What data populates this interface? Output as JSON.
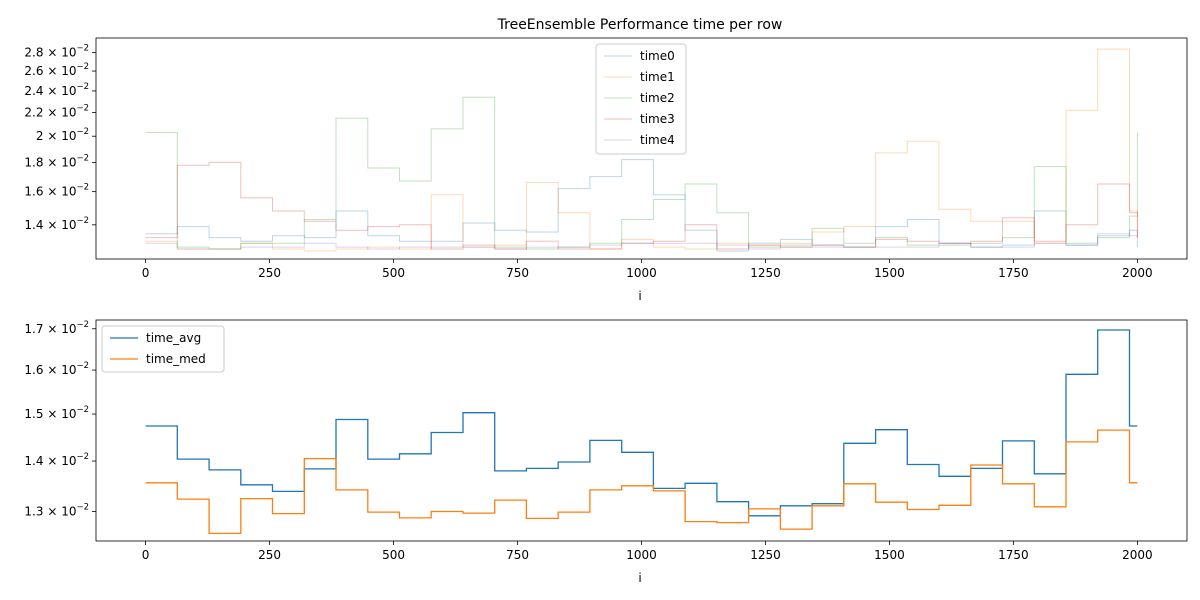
{
  "chart_data": [
    {
      "type": "line",
      "title": "TreeEnsemble Performance time per row",
      "xlabel": "i",
      "ylabel": "",
      "yscale": "log",
      "xlim": [
        -100,
        2100
      ],
      "ylim": [
        0.0122,
        0.0297
      ],
      "xticks": [
        0,
        250,
        500,
        750,
        1000,
        1250,
        1500,
        1750,
        2000
      ],
      "xtick_labels": [
        "0",
        "250",
        "500",
        "750",
        "1000",
        "1250",
        "1500",
        "1750",
        "2000"
      ],
      "yticks": [
        {
          "value": 0.014,
          "mantissa": "1.4",
          "exp": "−2"
        },
        {
          "value": 0.016,
          "mantissa": "1.6",
          "exp": "−2"
        },
        {
          "value": 0.018,
          "mantissa": "1.8",
          "exp": "−2"
        },
        {
          "value": 0.02,
          "mantissa": "2",
          "exp": "−2"
        },
        {
          "value": 0.022,
          "mantissa": "2.2",
          "exp": "−2"
        },
        {
          "value": 0.024,
          "mantissa": "2.4",
          "exp": "−2"
        },
        {
          "value": 0.026,
          "mantissa": "2.6",
          "exp": "−2"
        },
        {
          "value": 0.028,
          "mantissa": "2.8",
          "exp": "−2"
        }
      ],
      "grid": false,
      "legend_position": "top-center",
      "line_alpha": 0.3,
      "x": [
        0,
        64,
        128,
        192,
        256,
        320,
        384,
        448,
        512,
        576,
        640,
        704,
        768,
        832,
        896,
        960,
        1024,
        1088,
        1152,
        1216,
        1280,
        1344,
        1408,
        1472,
        1536,
        1600,
        1664,
        1728,
        1792,
        1856,
        1920,
        1984,
        2000
      ],
      "series": [
        {
          "name": "time0",
          "color": "#1f77b4",
          "values": [
            0.0135,
            0.0139,
            0.0133,
            0.0131,
            0.0134,
            0.0133,
            0.0148,
            0.0134,
            0.0131,
            0.0131,
            0.0141,
            0.0137,
            0.0136,
            0.0162,
            0.017,
            0.0182,
            0.0158,
            0.0137,
            0.0126,
            0.013,
            0.0132,
            0.0129,
            0.0128,
            0.0139,
            0.0143,
            0.013,
            0.0128,
            0.0129,
            0.0148,
            0.0129,
            0.0134,
            0.0137,
            0.0128
          ]
        },
        {
          "name": "time1",
          "color": "#ff7f0e",
          "values": [
            0.0131,
            0.0127,
            0.0127,
            0.013,
            0.0127,
            0.0126,
            0.0127,
            0.0128,
            0.0127,
            0.0158,
            0.0128,
            0.0129,
            0.0166,
            0.0147,
            0.0127,
            0.0132,
            0.0128,
            0.0127,
            0.013,
            0.0129,
            0.013,
            0.0136,
            0.0139,
            0.0187,
            0.0196,
            0.0149,
            0.0142,
            0.0142,
            0.013,
            0.0222,
            0.0284,
            0.0148,
            0.0133
          ]
        },
        {
          "name": "time2",
          "color": "#2ca02c",
          "values": [
            0.0203,
            0.0128,
            0.0127,
            0.013,
            0.013,
            0.0143,
            0.0215,
            0.0176,
            0.0167,
            0.0206,
            0.0234,
            0.0128,
            0.0127,
            0.0128,
            0.013,
            0.0143,
            0.0155,
            0.0165,
            0.0147,
            0.0128,
            0.0129,
            0.0138,
            0.013,
            0.0133,
            0.0129,
            0.0129,
            0.013,
            0.0133,
            0.0177,
            0.013,
            0.0133,
            0.0145,
            0.0203
          ]
        },
        {
          "name": "time3",
          "color": "#d62728",
          "values": [
            0.0133,
            0.0178,
            0.018,
            0.0156,
            0.0148,
            0.0142,
            0.0137,
            0.0139,
            0.014,
            0.0127,
            0.0129,
            0.0127,
            0.0131,
            0.0127,
            0.0127,
            0.013,
            0.0131,
            0.014,
            0.0127,
            0.0129,
            0.0128,
            0.0129,
            0.0128,
            0.0132,
            0.0131,
            0.013,
            0.0131,
            0.0144,
            0.0131,
            0.014,
            0.0165,
            0.0147,
            0.0133
          ]
        },
        {
          "name": "time4",
          "color": "#9467bd",
          "values": [
            0.013,
            0.0127,
            0.0127,
            0.0128,
            0.0128,
            0.013,
            0.0128,
            0.0127,
            0.0128,
            0.0128,
            0.0128,
            0.0127,
            0.0128,
            0.0128,
            0.0129,
            0.013,
            0.013,
            0.013,
            0.0129,
            0.0127,
            0.0128,
            0.0128,
            0.0128,
            0.0128,
            0.0128,
            0.013,
            0.0128,
            0.0128,
            0.013,
            0.0129,
            0.0135,
            0.0134,
            0.0133
          ]
        }
      ]
    },
    {
      "type": "line",
      "title": "",
      "xlabel": "i",
      "ylabel": "",
      "yscale": "log",
      "xlim": [
        -100,
        2100
      ],
      "ylim": [
        0.01245,
        0.01722
      ],
      "xticks": [
        0,
        250,
        500,
        750,
        1000,
        1250,
        1500,
        1750,
        2000
      ],
      "xtick_labels": [
        "0",
        "250",
        "500",
        "750",
        "1000",
        "1250",
        "1500",
        "1750",
        "2000"
      ],
      "yticks": [
        {
          "value": 0.013,
          "mantissa": "1.3",
          "exp": "−2"
        },
        {
          "value": 0.014,
          "mantissa": "1.4",
          "exp": "−2"
        },
        {
          "value": 0.015,
          "mantissa": "1.5",
          "exp": "−2"
        },
        {
          "value": 0.016,
          "mantissa": "1.6",
          "exp": "−2"
        },
        {
          "value": 0.017,
          "mantissa": "1.7",
          "exp": "−2"
        }
      ],
      "grid": false,
      "legend_position": "top-left",
      "line_alpha": 1,
      "x": [
        0,
        64,
        128,
        192,
        256,
        320,
        384,
        448,
        512,
        576,
        640,
        704,
        768,
        832,
        896,
        960,
        1024,
        1088,
        1152,
        1216,
        1280,
        1344,
        1408,
        1472,
        1536,
        1600,
        1664,
        1728,
        1792,
        1856,
        1920,
        1984,
        2000
      ],
      "series": [
        {
          "name": "time_avg",
          "color": "#1f77b4",
          "values": [
            0.01474,
            0.01404,
            0.01382,
            0.01352,
            0.01339,
            0.01384,
            0.01488,
            0.01404,
            0.01415,
            0.0146,
            0.01503,
            0.0138,
            0.01385,
            0.01398,
            0.01443,
            0.01418,
            0.01345,
            0.01355,
            0.01319,
            0.01292,
            0.01311,
            0.01315,
            0.01437,
            0.01466,
            0.01393,
            0.01369,
            0.01385,
            0.01442,
            0.01374,
            0.0159,
            0.01697,
            0.01474,
            0.01474
          ]
        },
        {
          "name": "time_med",
          "color": "#ff7f0e",
          "values": [
            0.01356,
            0.01324,
            0.01259,
            0.01325,
            0.01296,
            0.01405,
            0.01342,
            0.01299,
            0.01288,
            0.013,
            0.01297,
            0.01322,
            0.01287,
            0.01299,
            0.01342,
            0.0135,
            0.0134,
            0.01281,
            0.01279,
            0.01305,
            0.01267,
            0.01311,
            0.01354,
            0.01318,
            0.01304,
            0.01312,
            0.01392,
            0.01354,
            0.01309,
            0.0144,
            0.01465,
            0.01356,
            0.01356
          ]
        }
      ]
    }
  ]
}
